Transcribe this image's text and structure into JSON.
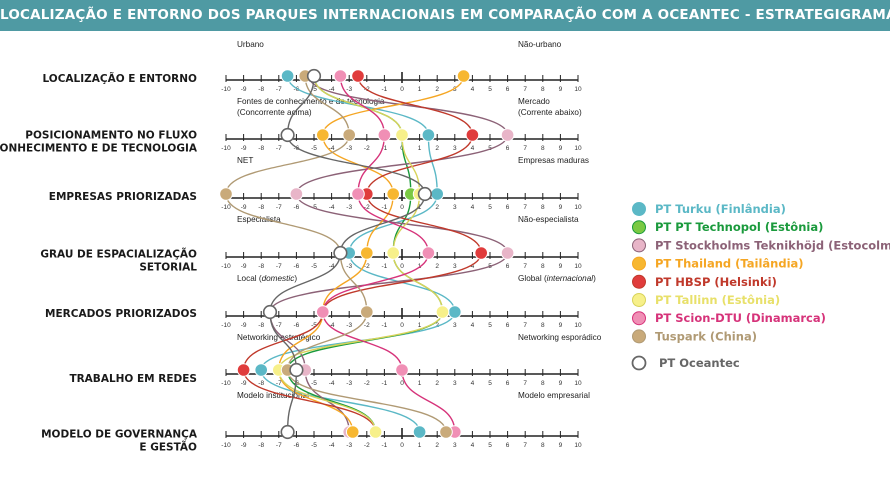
{
  "chart_data": {
    "type": "line",
    "title": "LOCALIZAÇÃO E ENTORNO DOS PARQUES INTERNACIONAIS EM COMPARAÇÃO COM A OCEANTEC - ESTRATEGIGRAMAS",
    "xlim": [
      -10,
      10
    ],
    "ticks": [
      -10,
      -9,
      -8,
      -7,
      -6,
      -5,
      -4,
      -3,
      -2,
      -1,
      0,
      1,
      2,
      3,
      4,
      5,
      6,
      7,
      8,
      9,
      10
    ],
    "dimensions": [
      {
        "label": [
          "LOCALIZAÇÃO E ENTORNO"
        ],
        "left": [
          "Urbano"
        ],
        "right": [
          "Não-urbano"
        ]
      },
      {
        "label": [
          "POSICIONAMENTO NO FLUXO",
          "DE CONHECIMENTO E DE TECNOLOGIA"
        ],
        "left": [
          "Fontes de conhecimento e de tecnologia",
          "(Concorrente acima)"
        ],
        "right": [
          "Mercado",
          "(Corrente abaixo)"
        ]
      },
      {
        "label": [
          "EMPRESAS PRIORIZADAS"
        ],
        "left": [
          "NET"
        ],
        "right": [
          "Empresas maduras"
        ]
      },
      {
        "label": [
          "GRAU DE ESPACIALIZAÇÃO",
          "SETORIAL"
        ],
        "left": [
          "Especialista"
        ],
        "right": [
          "Não-especialista"
        ]
      },
      {
        "label": [
          "MERCADOS PRIORIZADOS"
        ],
        "left": [
          "Local (domestic)"
        ],
        "right": [
          "Global (internacional)"
        ]
      },
      {
        "label": [
          "TRABALHO EM REDES"
        ],
        "left": [
          "Networking estratégico"
        ],
        "right": [
          "Networking esporádico"
        ]
      },
      {
        "label": [
          "MODELO DE GOVERNANÇA",
          "E GESTÃO"
        ],
        "left": [
          "Modelo institucional"
        ],
        "right": [
          "Modelo empresarial"
        ]
      }
    ],
    "series": [
      {
        "name": "PT Turku (Finlândia)",
        "color": "#5bb8c6",
        "fill": "#5bb8c6",
        "values": [
          -6.5,
          1.5,
          2,
          -3,
          3,
          -8,
          1
        ]
      },
      {
        "name": "PT PT Technopol (Estônia)",
        "color": "#1a9a3c",
        "fill": "#7ac943",
        "values": [
          -5,
          0,
          0.5,
          -0.5,
          2.3,
          -6.5,
          -1.5
        ]
      },
      {
        "name": "PT Stockholms Teknikhöjd (Estocolmo)",
        "color": "#8c6277",
        "fill": "#e8b5c8",
        "values": [
          -5.3,
          6,
          -6,
          6,
          -7.5,
          -5.5,
          -3
        ]
      },
      {
        "name": "PT Thailand (Tailândia)",
        "color": "#f5a623",
        "fill": "#f7b731",
        "values": [
          3.5,
          -4.5,
          -0.5,
          -2,
          -4.5,
          -7,
          -2.8
        ]
      },
      {
        "name": "PT HBSP (Helsinki)",
        "color": "#c0392b",
        "fill": "#e03c3c",
        "values": [
          -2.5,
          4,
          -2,
          4.5,
          -4.5,
          -9,
          -1.5
        ]
      },
      {
        "name": "PT Tallinn (Estônia)",
        "color": "#d8d35a",
        "fill": "#f7f08a",
        "values": [
          -5,
          0,
          1,
          -0.5,
          2.3,
          -7,
          -1.5
        ]
      },
      {
        "name": "PT Scion-DTU (Dinamarca)",
        "color": "#d6337a",
        "fill": "#f08fb5",
        "values": [
          -3.5,
          -1,
          -2.5,
          1.5,
          -4.5,
          0,
          3
        ]
      },
      {
        "name": "Tuspark (China)",
        "color": "#b09a74",
        "fill": "#c9aa7a",
        "values": [
          -5.5,
          -3,
          -10,
          -3.5,
          -2,
          -6.5,
          2.5
        ]
      },
      {
        "name": "PT Oceantec",
        "color": "#666666",
        "fill": "#ffffff",
        "values": [
          -5,
          -6.5,
          1.3,
          -3.5,
          -7.5,
          -6,
          -6.5
        ]
      }
    ]
  }
}
